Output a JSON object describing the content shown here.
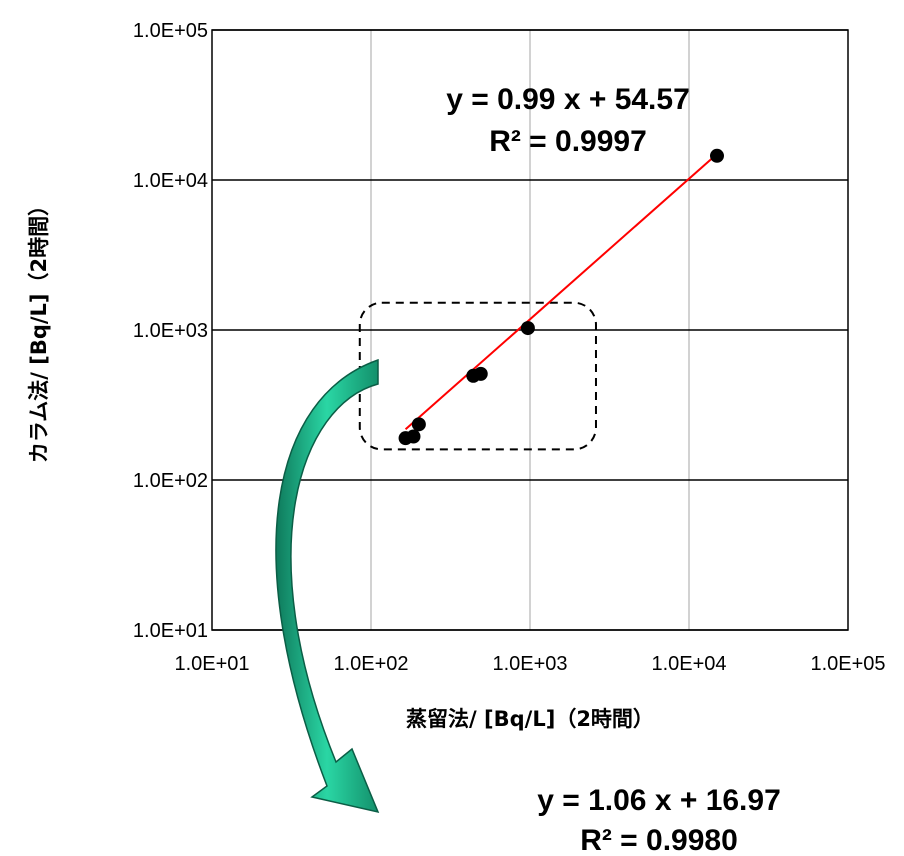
{
  "chart_data": {
    "type": "scatter",
    "xscale": "log",
    "yscale": "log",
    "xlim": [
      10,
      100000
    ],
    "ylim": [
      10,
      100000
    ],
    "grid": true,
    "xlabel": "蒸留法/ [Bq/L]（2時間）",
    "ylabel": "カラム法/ [Bq/L]（2時間）",
    "x_ticks": [
      "1.0E+01",
      "1.0E+02",
      "1.0E+03",
      "1.0E+04",
      "1.0E+05"
    ],
    "y_ticks": [
      "1.0E+01",
      "1.0E+02",
      "1.0E+03",
      "1.0E+04",
      "1.0E+05"
    ],
    "tick_values": [
      10,
      100,
      1000,
      10000,
      100000
    ],
    "series": [
      {
        "points": [
          {
            "x": 165,
            "y": 190
          },
          {
            "x": 185,
            "y": 195
          },
          {
            "x": 200,
            "y": 235
          },
          {
            "x": 440,
            "y": 495
          },
          {
            "x": 490,
            "y": 510
          },
          {
            "x": 970,
            "y": 1030
          },
          {
            "x": 15000,
            "y": 14500
          }
        ],
        "color": "#000000"
      }
    ],
    "trendline": {
      "x_range": [
        165,
        15000
      ],
      "color": "#ff0000"
    },
    "annotations": {
      "main_equation": "y = 0.99 x + 54.57",
      "main_r2": "R² = 0.9997",
      "inset_equation": "y = 1.06 x + 16.97",
      "inset_r2": "R² = 0.9980"
    },
    "highlight_box": {
      "x_range": [
        85,
        2600
      ],
      "y_range": [
        160,
        1520
      ]
    },
    "arrow_color": "#1db38a"
  }
}
